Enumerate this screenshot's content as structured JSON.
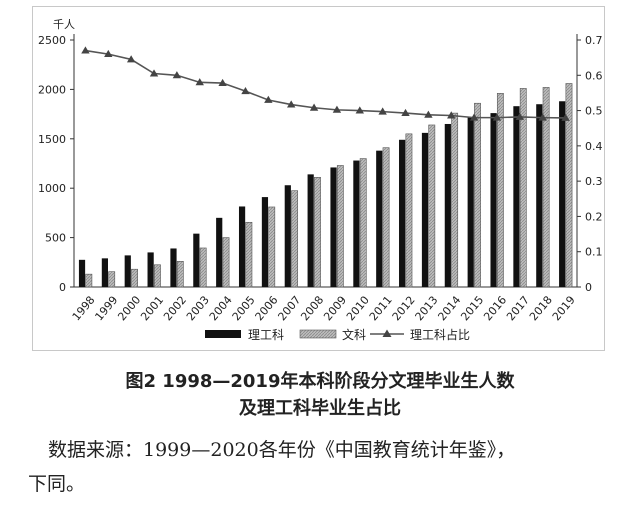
{
  "chart_data": {
    "type": "bar",
    "categories": [
      "1998",
      "1999",
      "2000",
      "2001",
      "2002",
      "2003",
      "2004",
      "2005",
      "2006",
      "2007",
      "2008",
      "2009",
      "2010",
      "2011",
      "2012",
      "2013",
      "2014",
      "2015",
      "2016",
      "2017",
      "2018",
      "2019"
    ],
    "series": [
      {
        "name": "理工科",
        "type": "bar",
        "axis": "left",
        "color": "#111111",
        "values": [
          275,
          290,
          320,
          350,
          390,
          540,
          700,
          815,
          910,
          1030,
          1140,
          1210,
          1280,
          1380,
          1490,
          1560,
          1650,
          1720,
          1760,
          1830,
          1850,
          1880
        ]
      },
      {
        "name": "文科",
        "type": "bar",
        "axis": "left",
        "color": "#bdbdbd",
        "values": [
          130,
          155,
          180,
          225,
          260,
          395,
          500,
          655,
          810,
          975,
          1110,
          1230,
          1300,
          1410,
          1550,
          1640,
          1760,
          1860,
          1960,
          2010,
          2020,
          2060
        ]
      },
      {
        "name": "理工科占比",
        "type": "line",
        "axis": "right",
        "color": "#555555",
        "values": [
          0.67,
          0.66,
          0.645,
          0.605,
          0.6,
          0.58,
          0.578,
          0.555,
          0.53,
          0.517,
          0.508,
          0.502,
          0.5,
          0.497,
          0.493,
          0.488,
          0.486,
          0.48,
          0.48,
          0.482,
          0.48,
          0.479
        ]
      }
    ],
    "y_left": {
      "unit": "千人",
      "ticks": [
        0,
        500,
        1000,
        1500,
        2000,
        2500
      ],
      "range": [
        0,
        2500
      ]
    },
    "y_right": {
      "ticks": [
        "0",
        "0.1",
        "0.2",
        "0.3",
        "0.4",
        "0.5",
        "0.6",
        "0.7"
      ],
      "range": [
        0,
        0.7
      ]
    },
    "legend": {
      "position": "bottom",
      "items": [
        "理工科",
        "文科",
        "理工科占比"
      ]
    },
    "grid": false
  },
  "caption": {
    "line1": "图2  1998—2019年本科阶段分文理毕业生人数",
    "line2": "及理工科毕业生占比"
  },
  "source": {
    "line1": "数据来源：1999—2020各年份《中国教育统计年鉴》，",
    "line2": "下同。"
  }
}
